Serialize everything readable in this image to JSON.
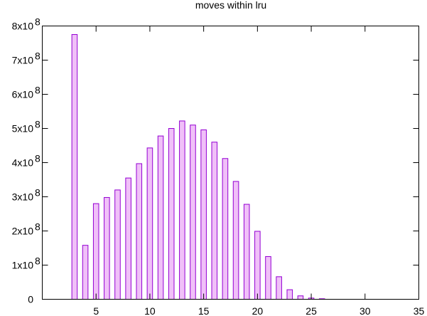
{
  "chart_data": {
    "type": "bar",
    "title": "moves within lru",
    "xlabel": "",
    "ylabel": "",
    "xlim": [
      0,
      35
    ],
    "ylim": [
      0,
      800000000
    ],
    "grid": false,
    "legend": "none",
    "x_ticks": [
      {
        "value": 5,
        "label": "5"
      },
      {
        "value": 10,
        "label": "10"
      },
      {
        "value": 15,
        "label": "15"
      },
      {
        "value": 20,
        "label": "20"
      },
      {
        "value": 25,
        "label": "25"
      },
      {
        "value": 30,
        "label": "30"
      },
      {
        "value": 35,
        "label": "35"
      }
    ],
    "y_ticks": [
      {
        "value": 0,
        "mant": "0",
        "exp": ""
      },
      {
        "value": 100000000,
        "mant": "1x10",
        "exp": "8"
      },
      {
        "value": 200000000,
        "mant": "2x10",
        "exp": "8"
      },
      {
        "value": 300000000,
        "mant": "3x10",
        "exp": "8"
      },
      {
        "value": 400000000,
        "mant": "4x10",
        "exp": "8"
      },
      {
        "value": 500000000,
        "mant": "5x10",
        "exp": "8"
      },
      {
        "value": 600000000,
        "mant": "6x10",
        "exp": "8"
      },
      {
        "value": 700000000,
        "mant": "7x10",
        "exp": "8"
      },
      {
        "value": 800000000,
        "mant": "8x10",
        "exp": "8"
      }
    ],
    "bar_width": 0.5,
    "series": [
      {
        "x": [
          3,
          4,
          5,
          6,
          7,
          8,
          9,
          10,
          11,
          12,
          13,
          14,
          15,
          16,
          17,
          18,
          19,
          20,
          21,
          22,
          23,
          24,
          25,
          26
        ],
        "values": [
          775000000,
          158000000,
          280000000,
          298000000,
          320000000,
          355000000,
          397000000,
          443000000,
          478000000,
          500000000,
          522000000,
          510000000,
          496000000,
          460000000,
          412000000,
          345000000,
          278000000,
          199000000,
          125000000,
          66000000,
          28000000,
          10000000,
          3500000,
          1500000
        ],
        "fill": "#f0c0f8",
        "stroke": "#9400d3"
      }
    ]
  }
}
